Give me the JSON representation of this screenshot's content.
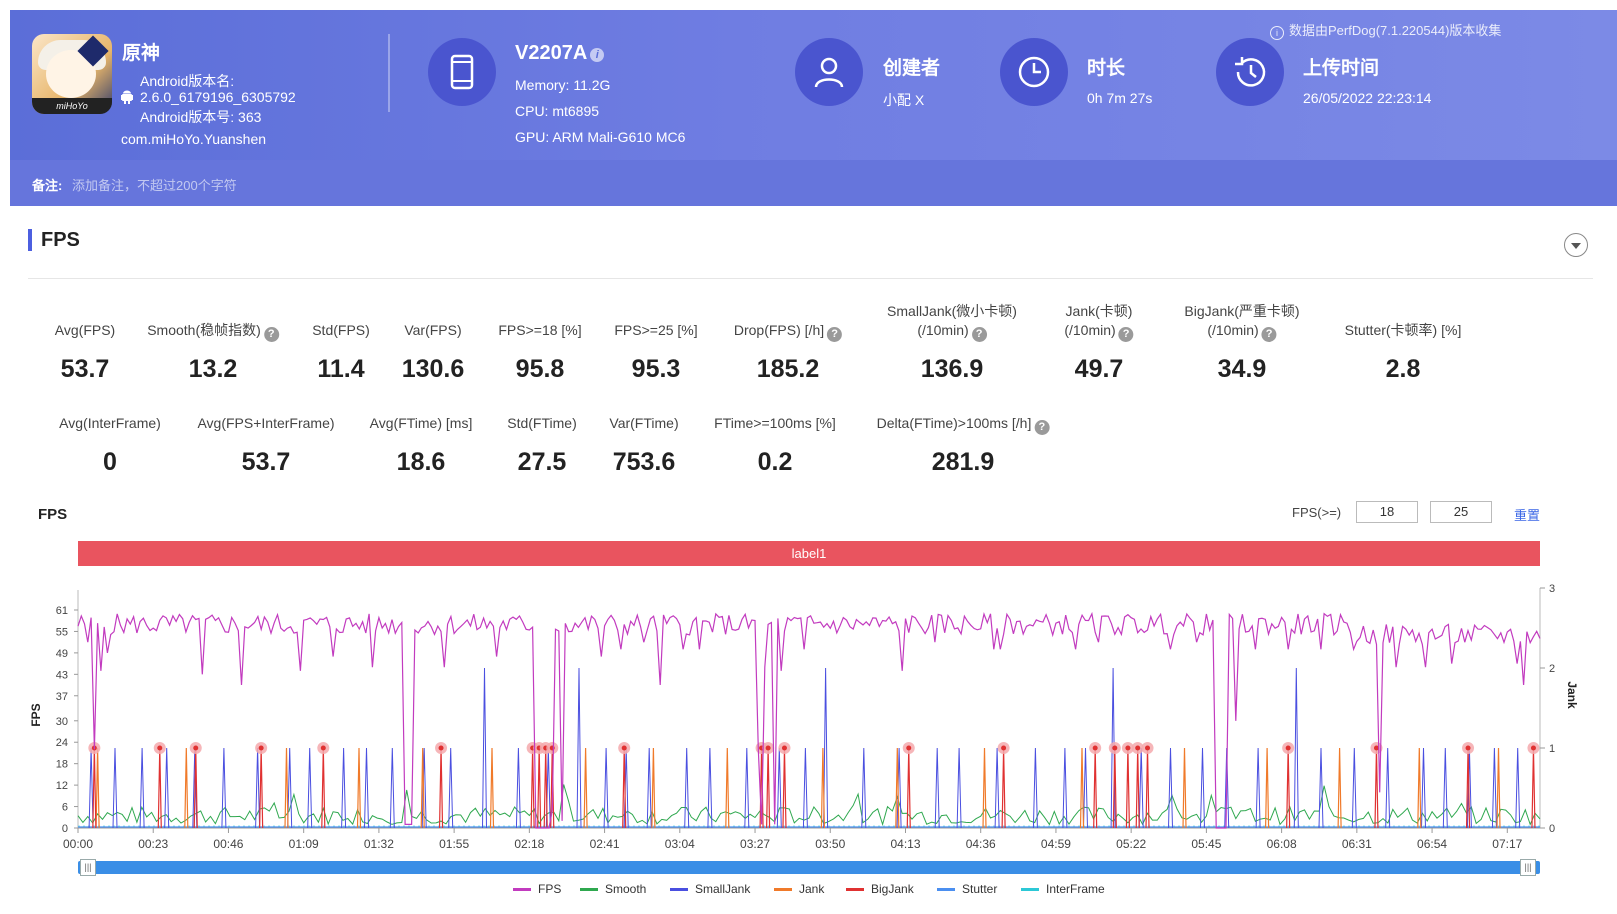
{
  "header": {
    "credit": "数据由PerfDog(7.1.220544)版本收集",
    "app": {
      "name": "原神",
      "version_name_label": "Android版本名:",
      "version_name": "2.6.0_6179196_6305792",
      "version_code": "Android版本号: 363",
      "package": "com.miHoYo.Yuanshen",
      "icon_brand": "miHoYo"
    },
    "device": {
      "name": "V2207A",
      "memory": "Memory: 11.2G",
      "cpu": "CPU: mt6895",
      "gpu": "GPU: ARM Mali-G610 MC6"
    },
    "creator": {
      "label": "创建者",
      "value": "小配 X"
    },
    "duration": {
      "label": "时长",
      "value": "0h 7m 27s"
    },
    "upload": {
      "label": "上传时间",
      "value": "26/05/2022 22:23:14"
    },
    "note": {
      "label": "备注:",
      "placeholder": "添加备注，不超过200个字符"
    }
  },
  "section": {
    "title": "FPS"
  },
  "metrics_row1": [
    {
      "label": "Avg(FPS)",
      "value": "53.7",
      "help": false
    },
    {
      "label": "Smooth(稳帧指数)",
      "value": "13.2",
      "help": true
    },
    {
      "label": "Std(FPS)",
      "value": "11.4",
      "help": false
    },
    {
      "label": "Var(FPS)",
      "value": "130.6",
      "help": false
    },
    {
      "label": "FPS>=18 [%]",
      "value": "95.8",
      "help": false
    },
    {
      "label": "FPS>=25 [%]",
      "value": "95.3",
      "help": false
    },
    {
      "label": "Drop(FPS) [/h]",
      "value": "185.2",
      "help": true
    },
    {
      "label": "SmallJank(微小卡顿)",
      "label2": "(/10min)",
      "value": "136.9",
      "help": true
    },
    {
      "label": "Jank(卡顿)",
      "label2": "(/10min)",
      "value": "49.7",
      "help": true
    },
    {
      "label": "BigJank(严重卡顿)",
      "label2": "(/10min)",
      "value": "34.9",
      "help": true
    },
    {
      "label": "Stutter(卡顿率) [%]",
      "value": "2.8",
      "help": false
    }
  ],
  "metrics_row2": [
    {
      "label": "Avg(InterFrame)",
      "value": "0",
      "help": false
    },
    {
      "label": "Avg(FPS+InterFrame)",
      "value": "53.7",
      "help": false
    },
    {
      "label": "Avg(FTime) [ms]",
      "value": "18.6",
      "help": false
    },
    {
      "label": "Std(FTime)",
      "value": "27.5",
      "help": false
    },
    {
      "label": "Var(FTime)",
      "value": "753.6",
      "help": false
    },
    {
      "label": "FTime>=100ms [%]",
      "value": "0.2",
      "help": false
    },
    {
      "label": "Delta(FTime)>100ms [/h]",
      "value": "281.9",
      "help": true
    }
  ],
  "chart_controls": {
    "title": "FPS",
    "threshold_label": "FPS(>=)",
    "threshold1": "18",
    "threshold2": "25",
    "reset": "重置",
    "segment_label": "label1"
  },
  "colors": {
    "fps": "#c23bbf",
    "smooth": "#2fa84f",
    "smalljank": "#4a4fe0",
    "jank": "#f07a2a",
    "bigjank": "#e03131",
    "stutter": "#4b8ff0",
    "interframe": "#2cc8d6"
  },
  "chart_data": {
    "type": "line",
    "title": "FPS",
    "ylabel": "FPS",
    "y2label": "Jank",
    "ylim": [
      0,
      61
    ],
    "y2lim": [
      0,
      3
    ],
    "yticks": [
      "0",
      "6",
      "12",
      "18",
      "24",
      "30",
      "37",
      "43",
      "49",
      "55",
      "61"
    ],
    "y2ticks": [
      "0",
      "1",
      "2",
      "3"
    ],
    "xticks": [
      "00:00",
      "00:23",
      "00:46",
      "01:09",
      "01:32",
      "01:55",
      "02:18",
      "02:41",
      "03:04",
      "03:27",
      "03:50",
      "04:13",
      "04:36",
      "04:59",
      "05:22",
      "05:45",
      "06:08",
      "06:31",
      "06:54",
      "07:17"
    ],
    "duration_s": 447,
    "fps_baseline": 57,
    "fps_drops": [
      {
        "t": 3,
        "v": 52
      },
      {
        "t": 5,
        "v": 22
      },
      {
        "t": 7,
        "v": 44
      },
      {
        "t": 9,
        "v": 49
      },
      {
        "t": 38,
        "v": 43
      },
      {
        "t": 50,
        "v": 40
      },
      {
        "t": 68,
        "v": 44
      },
      {
        "t": 78,
        "v": 48
      },
      {
        "t": 90,
        "v": 45
      },
      {
        "t": 100,
        "v": 1
      },
      {
        "t": 101,
        "v": 1
      },
      {
        "t": 102,
        "v": 1
      },
      {
        "t": 112,
        "v": 45
      },
      {
        "t": 128,
        "v": 48
      },
      {
        "t": 140,
        "v": 0
      },
      {
        "t": 141,
        "v": 0
      },
      {
        "t": 142,
        "v": 0
      },
      {
        "t": 143,
        "v": 0
      },
      {
        "t": 144,
        "v": 0
      },
      {
        "t": 145,
        "v": 5
      },
      {
        "t": 148,
        "v": 2
      },
      {
        "t": 160,
        "v": 48
      },
      {
        "t": 166,
        "v": 50
      },
      {
        "t": 173,
        "v": 52
      },
      {
        "t": 178,
        "v": 40
      },
      {
        "t": 185,
        "v": 50
      },
      {
        "t": 190,
        "v": 50
      },
      {
        "t": 208,
        "v": 22
      },
      {
        "t": 209,
        "v": 1
      },
      {
        "t": 210,
        "v": 45
      },
      {
        "t": 213,
        "v": 1
      },
      {
        "t": 215,
        "v": 44
      },
      {
        "t": 222,
        "v": 50
      },
      {
        "t": 252,
        "v": 44
      },
      {
        "t": 262,
        "v": 52
      },
      {
        "t": 280,
        "v": 50
      },
      {
        "t": 282,
        "v": 50
      },
      {
        "t": 305,
        "v": 50
      },
      {
        "t": 312,
        "v": 52
      },
      {
        "t": 334,
        "v": 50
      },
      {
        "t": 342,
        "v": 52
      },
      {
        "t": 348,
        "v": 0
      },
      {
        "t": 349,
        "v": 0
      },
      {
        "t": 350,
        "v": 0
      },
      {
        "t": 351,
        "v": 0
      },
      {
        "t": 354,
        "v": 30
      },
      {
        "t": 360,
        "v": 50
      },
      {
        "t": 370,
        "v": 50
      },
      {
        "t": 380,
        "v": 50
      },
      {
        "t": 390,
        "v": 50
      },
      {
        "t": 398,
        "v": 10
      },
      {
        "t": 403,
        "v": 45
      },
      {
        "t": 412,
        "v": 45
      },
      {
        "t": 420,
        "v": 46
      },
      {
        "t": 440,
        "v": 46
      },
      {
        "t": 442,
        "v": 40
      }
    ],
    "jank_events": [
      {
        "t": 5,
        "type": "bigjank"
      },
      {
        "t": 25,
        "type": "bigjank"
      },
      {
        "t": 36,
        "type": "bigjank"
      },
      {
        "t": 56,
        "type": "bigjank"
      },
      {
        "t": 75,
        "type": "bigjank"
      },
      {
        "t": 111,
        "type": "bigjank"
      },
      {
        "t": 139,
        "type": "bigjank"
      },
      {
        "t": 141,
        "type": "bigjank"
      },
      {
        "t": 143,
        "type": "bigjank"
      },
      {
        "t": 145,
        "type": "bigjank"
      },
      {
        "t": 167,
        "type": "bigjank"
      },
      {
        "t": 209,
        "type": "bigjank"
      },
      {
        "t": 211,
        "type": "bigjank"
      },
      {
        "t": 216,
        "type": "bigjank"
      },
      {
        "t": 254,
        "type": "bigjank"
      },
      {
        "t": 283,
        "type": "bigjank"
      },
      {
        "t": 311,
        "type": "bigjank"
      },
      {
        "t": 317,
        "type": "bigjank"
      },
      {
        "t": 321,
        "type": "bigjank"
      },
      {
        "t": 324,
        "type": "bigjank"
      },
      {
        "t": 327,
        "type": "bigjank"
      },
      {
        "t": 370,
        "type": "bigjank"
      },
      {
        "t": 397,
        "type": "bigjank"
      },
      {
        "t": 425,
        "type": "bigjank"
      },
      {
        "t": 445,
        "type": "bigjank"
      }
    ],
    "legend": [
      "FPS",
      "Smooth",
      "SmallJank",
      "Jank",
      "BigJank",
      "Stutter",
      "InterFrame"
    ]
  }
}
